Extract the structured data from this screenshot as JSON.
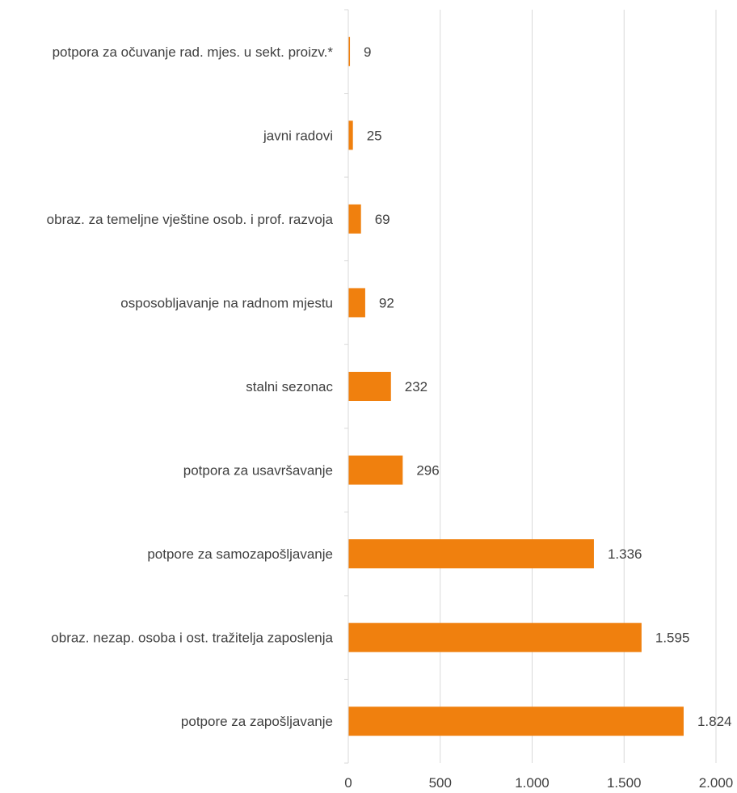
{
  "chart_data": {
    "type": "bar",
    "orientation": "horizontal",
    "categories": [
      "potpora za očuvanje rad. mjes. u sekt. proizv.*",
      "javni radovi",
      "obraz. za temeljne vještine osob. i prof. razvoja",
      "osposobljavanje na radnom mjestu",
      "stalni sezonac",
      "potpora za usavršavanje",
      "potpore za samozapošljavanje",
      "obraz. nezap. osoba i ost. tražitelja zaposlenja",
      "potpore za zapošljavanje"
    ],
    "values": [
      9,
      25,
      69,
      92,
      232,
      296,
      1336,
      1595,
      1824
    ],
    "value_labels": [
      "9",
      "25",
      "69",
      "92",
      "232",
      "296",
      "1.336",
      "1.595",
      "1.824"
    ],
    "x_ticks": [
      0,
      500,
      1000,
      1500,
      2000
    ],
    "x_tick_labels": [
      "0",
      "500",
      "1.000",
      "1.500",
      "2.000"
    ],
    "xlim": [
      0,
      2000
    ],
    "grid": true,
    "legend": "none",
    "bar_color": "#F0800E",
    "grid_color": "#D9D9D9",
    "text_color": "#404040"
  }
}
